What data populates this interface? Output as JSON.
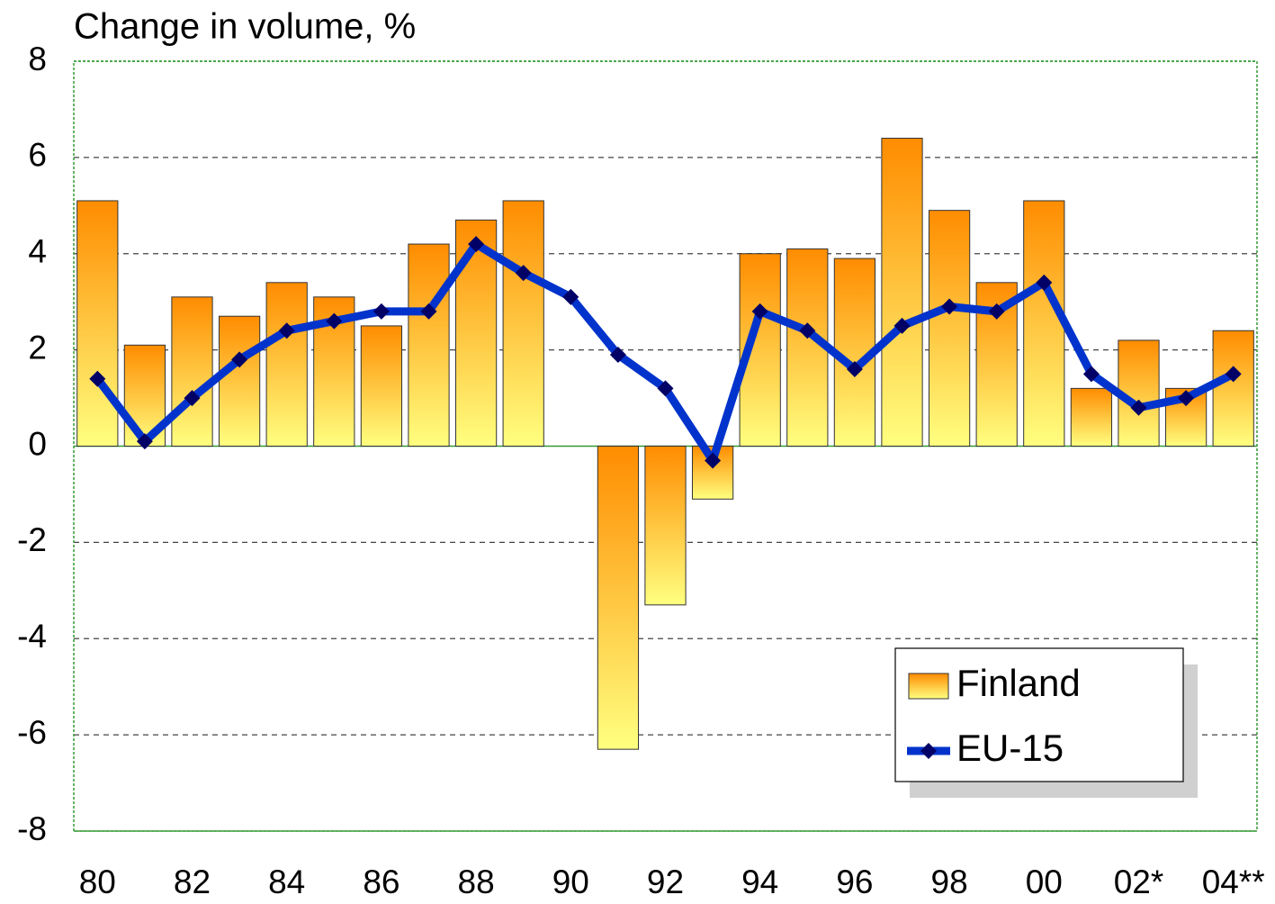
{
  "chart_data": {
    "type": "bar",
    "title": "Change in volume,  %",
    "categories": [
      "80",
      null,
      "82",
      null,
      "84",
      null,
      "86",
      null,
      "88",
      null,
      "90",
      null,
      "92",
      null,
      "94",
      null,
      "96",
      null,
      "98",
      null,
      "00",
      null,
      "02*",
      null,
      "04**"
    ],
    "series": [
      {
        "name": "Finland",
        "type": "bar",
        "color": "#ff8c00",
        "color2": "#ffff80",
        "values": [
          5.1,
          2.1,
          3.1,
          2.7,
          3.4,
          3.1,
          2.5,
          4.2,
          4.7,
          5.1,
          0,
          -6.3,
          -3.3,
          -1.1,
          4.0,
          4.1,
          3.9,
          6.4,
          4.9,
          3.4,
          5.1,
          1.2,
          2.2,
          1.2,
          2.4
        ]
      },
      {
        "name": "EU-15",
        "type": "line",
        "color": "#0033cc",
        "marker_color": "#000066",
        "values": [
          1.4,
          0.1,
          1.0,
          1.8,
          2.4,
          2.6,
          2.8,
          2.8,
          4.2,
          3.6,
          3.1,
          1.9,
          1.2,
          -0.3,
          2.8,
          2.4,
          1.6,
          2.5,
          2.9,
          2.8,
          3.4,
          1.5,
          0.8,
          1.0,
          1.5
        ]
      }
    ],
    "ylim": [
      -8,
      8
    ],
    "yticks": [
      -8,
      -6,
      -4,
      -2,
      0,
      2,
      4,
      6,
      8
    ],
    "grid": true,
    "legend": "lower right"
  }
}
